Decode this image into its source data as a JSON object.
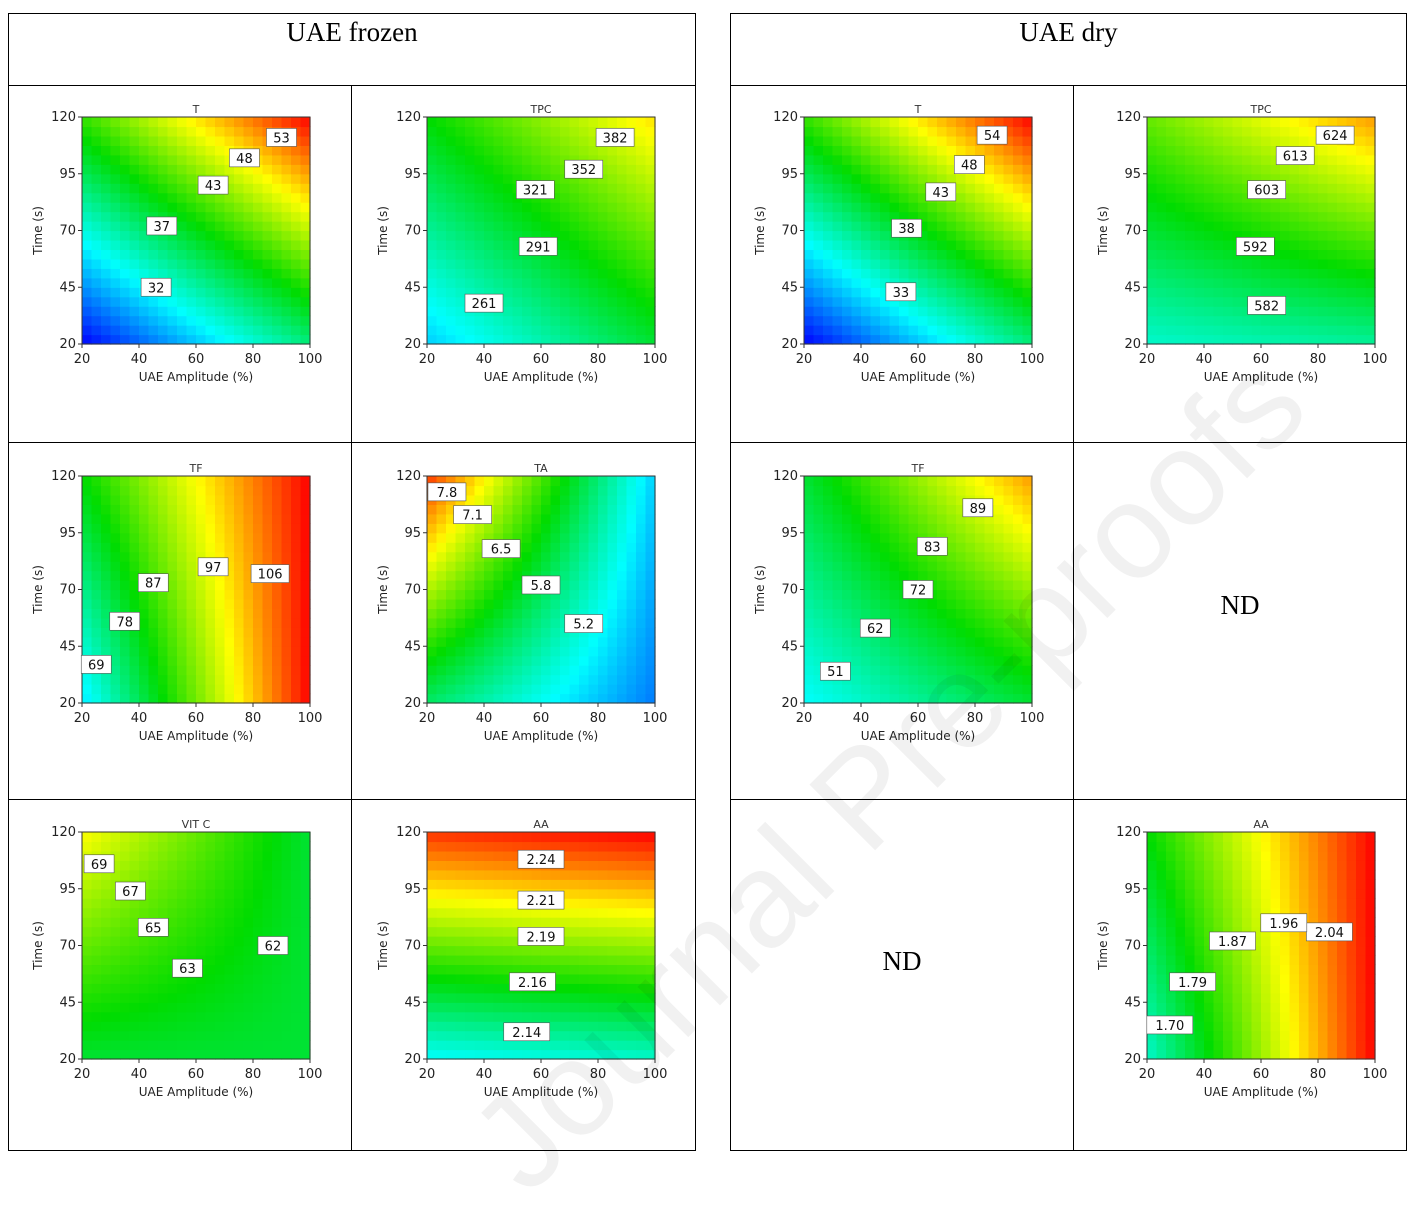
{
  "headers": {
    "left": "UAE frozen",
    "right": "UAE dry"
  },
  "nd_label": "ND",
  "watermark": "Journal Pre-proofs",
  "axis": {
    "xlabel": "UAE Amplitude (%)",
    "ylabel": "Time (s)",
    "xticks": [
      "20",
      "40",
      "60",
      "80",
      "100"
    ],
    "yticks": [
      "20",
      "45",
      "70",
      "95",
      "120"
    ],
    "xlim": [
      20,
      100
    ],
    "ylim": [
      20,
      120
    ]
  },
  "chart_data": [
    {
      "id": "frozen-T",
      "type": "heatmap",
      "title": "T",
      "group": "UAE frozen",
      "colormap": "blue-cyan-green-yellow-red",
      "corner_levels": {
        "x20_y20": 0.0,
        "x100_y20": 0.38,
        "x20_y120": 0.55,
        "x100_y120": 1.0
      },
      "contour_labels": [
        {
          "text": "53",
          "x": 90,
          "y": 111
        },
        {
          "text": "48",
          "x": 77,
          "y": 102
        },
        {
          "text": "43",
          "x": 66,
          "y": 90
        },
        {
          "text": "37",
          "x": 48,
          "y": 72
        },
        {
          "text": "32",
          "x": 46,
          "y": 45
        }
      ]
    },
    {
      "id": "frozen-TPC",
      "type": "heatmap",
      "title": "TPC",
      "group": "UAE frozen",
      "colormap": "blue-cyan-green-yellow-red",
      "corner_levels": {
        "x20_y20": 0.2,
        "x100_y20": 0.45,
        "x20_y120": 0.5,
        "x100_y120": 0.78
      },
      "contour_labels": [
        {
          "text": "382",
          "x": 86,
          "y": 111
        },
        {
          "text": "352",
          "x": 75,
          "y": 97
        },
        {
          "text": "321",
          "x": 58,
          "y": 88
        },
        {
          "text": "291",
          "x": 59,
          "y": 63
        },
        {
          "text": "261",
          "x": 40,
          "y": 38
        }
      ]
    },
    {
      "id": "frozen-TF",
      "type": "heatmap",
      "title": "TF",
      "group": "UAE frozen",
      "colormap": "blue-cyan-green-yellow-red",
      "corner_levels": {
        "x20_y20": 0.22,
        "x100_y20": 1.0,
        "x20_y120": 0.5,
        "x100_y120": 1.0
      },
      "contour_labels": [
        {
          "text": "106",
          "x": 86,
          "y": 77
        },
        {
          "text": "97",
          "x": 66,
          "y": 80
        },
        {
          "text": "87",
          "x": 45,
          "y": 73
        },
        {
          "text": "78",
          "x": 35,
          "y": 56
        },
        {
          "text": "69",
          "x": 25,
          "y": 37
        }
      ]
    },
    {
      "id": "frozen-TA",
      "type": "heatmap",
      "title": "TA",
      "group": "UAE frozen",
      "colormap": "blue-cyan-green-yellow-red",
      "corner_levels": {
        "x20_y20": 0.4,
        "x100_y20": 0.12,
        "x20_y120": 0.95,
        "x100_y120": 0.2
      },
      "contour_labels": [
        {
          "text": "7.8",
          "x": 27,
          "y": 113
        },
        {
          "text": "7.1",
          "x": 36,
          "y": 103
        },
        {
          "text": "6.5",
          "x": 46,
          "y": 88
        },
        {
          "text": "5.8",
          "x": 60,
          "y": 72
        },
        {
          "text": "5.2",
          "x": 75,
          "y": 55
        }
      ]
    },
    {
      "id": "frozen-VITC",
      "type": "heatmap",
      "title": "VIT C",
      "group": "UAE frozen",
      "colormap": "blue-cyan-green-yellow-red",
      "corner_levels": {
        "x20_y20": 0.45,
        "x100_y20": 0.45,
        "x20_y120": 0.75,
        "x100_y120": 0.45
      },
      "contour_labels": [
        {
          "text": "69",
          "x": 26,
          "y": 106
        },
        {
          "text": "67",
          "x": 37,
          "y": 94
        },
        {
          "text": "65",
          "x": 45,
          "y": 78
        },
        {
          "text": "63",
          "x": 57,
          "y": 60
        },
        {
          "text": "62",
          "x": 87,
          "y": 70
        }
      ]
    },
    {
      "id": "frozen-AA",
      "type": "heatmap",
      "title": "AA",
      "group": "UAE frozen",
      "colormap": "blue-cyan-green-yellow-red",
      "corner_levels": {
        "x20_y20": 0.25,
        "x100_y20": 0.3,
        "x20_y120": 0.95,
        "x100_y120": 1.0
      },
      "contour_labels": [
        {
          "text": "2.24",
          "x": 60,
          "y": 108
        },
        {
          "text": "2.21",
          "x": 60,
          "y": 90
        },
        {
          "text": "2.19",
          "x": 60,
          "y": 74
        },
        {
          "text": "2.16",
          "x": 57,
          "y": 54
        },
        {
          "text": "2.14",
          "x": 55,
          "y": 32
        }
      ]
    },
    {
      "id": "dry-T",
      "type": "heatmap",
      "title": "T",
      "group": "UAE dry",
      "colormap": "blue-cyan-green-yellow-red",
      "corner_levels": {
        "x20_y20": 0.0,
        "x100_y20": 0.38,
        "x20_y120": 0.55,
        "x100_y120": 1.0
      },
      "contour_labels": [
        {
          "text": "54",
          "x": 86,
          "y": 112
        },
        {
          "text": "48",
          "x": 78,
          "y": 99
        },
        {
          "text": "43",
          "x": 68,
          "y": 87
        },
        {
          "text": "38",
          "x": 56,
          "y": 71
        },
        {
          "text": "33",
          "x": 54,
          "y": 43
        }
      ]
    },
    {
      "id": "dry-TPC",
      "type": "heatmap",
      "title": "TPC",
      "group": "UAE dry",
      "colormap": "blue-cyan-green-yellow-red",
      "corner_levels": {
        "x20_y20": 0.3,
        "x100_y20": 0.35,
        "x20_y120": 0.6,
        "x100_y120": 0.85
      },
      "contour_labels": [
        {
          "text": "624",
          "x": 86,
          "y": 112
        },
        {
          "text": "613",
          "x": 72,
          "y": 103
        },
        {
          "text": "603",
          "x": 62,
          "y": 88
        },
        {
          "text": "592",
          "x": 58,
          "y": 63
        },
        {
          "text": "582",
          "x": 62,
          "y": 37
        }
      ]
    },
    {
      "id": "dry-TF",
      "type": "heatmap",
      "title": "TF",
      "group": "UAE dry",
      "colormap": "blue-cyan-green-yellow-red",
      "corner_levels": {
        "x20_y20": 0.25,
        "x100_y20": 0.45,
        "x20_y120": 0.45,
        "x100_y120": 0.85
      },
      "contour_labels": [
        {
          "text": "89",
          "x": 81,
          "y": 106
        },
        {
          "text": "83",
          "x": 65,
          "y": 89
        },
        {
          "text": "72",
          "x": 60,
          "y": 70
        },
        {
          "text": "62",
          "x": 45,
          "y": 53
        },
        {
          "text": "51",
          "x": 31,
          "y": 34
        }
      ]
    },
    {
      "id": "dry-AA",
      "type": "heatmap",
      "title": "AA",
      "group": "UAE dry",
      "colormap": "blue-cyan-green-yellow-red",
      "corner_levels": {
        "x20_y20": 0.3,
        "x100_y20": 1.0,
        "x20_y120": 0.5,
        "x100_y120": 1.0
      },
      "contour_labels": [
        {
          "text": "2.04",
          "x": 84,
          "y": 76
        },
        {
          "text": "1.96",
          "x": 68,
          "y": 80
        },
        {
          "text": "1.87",
          "x": 50,
          "y": 72
        },
        {
          "text": "1.79",
          "x": 36,
          "y": 54
        },
        {
          "text": "1.70",
          "x": 28,
          "y": 35
        }
      ]
    }
  ]
}
